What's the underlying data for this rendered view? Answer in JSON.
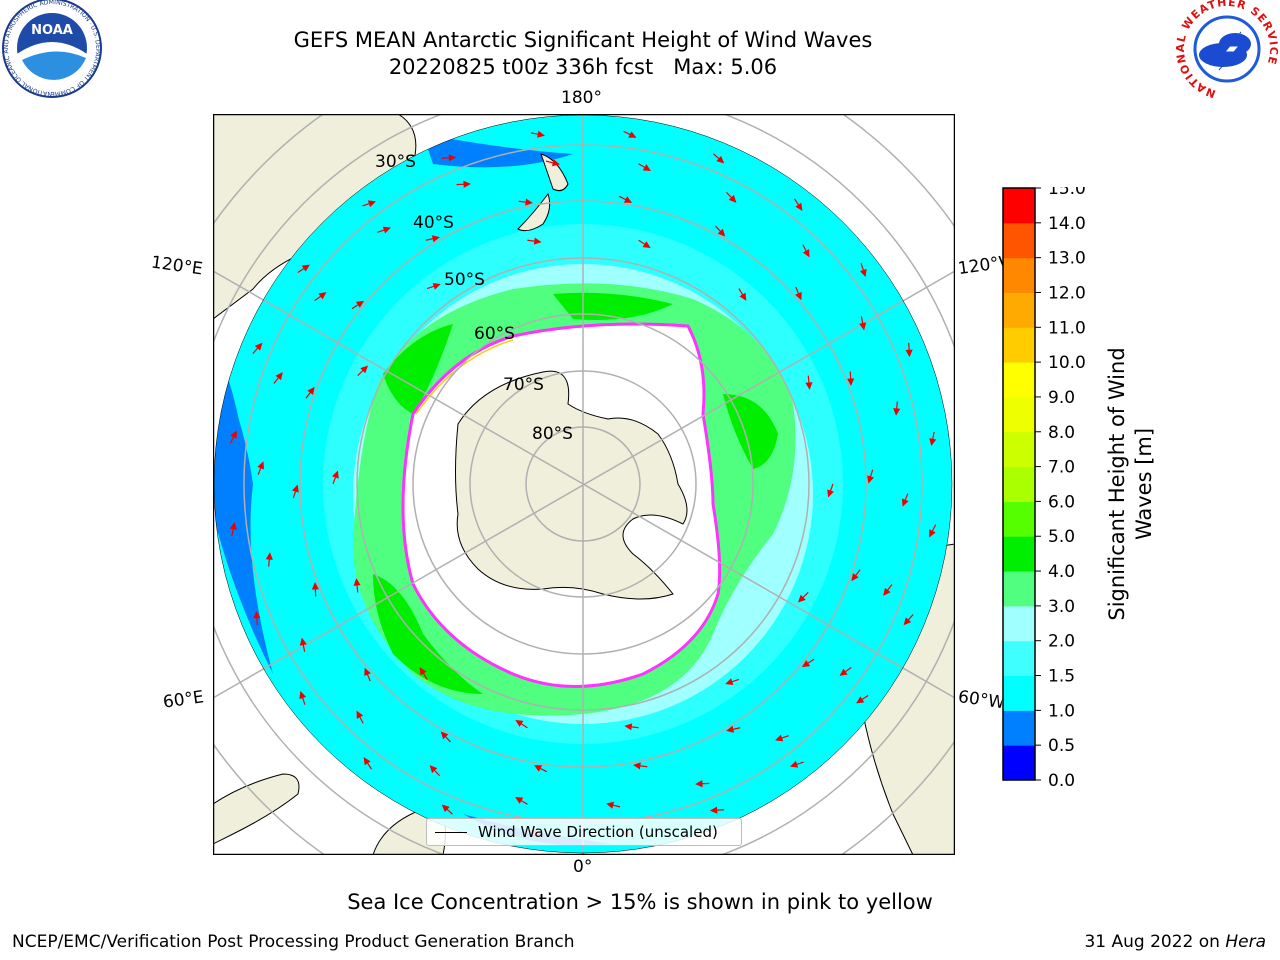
{
  "header": {
    "title_line1": "GEFS MEAN Antarctic Significant Height of Wind Waves",
    "title_line2": "20220825 t00z 336h fcst   Max: 5.06"
  },
  "map": {
    "longitude_labels": {
      "top": "180°",
      "bottom": "0°",
      "upper_left": "120°E",
      "upper_right": "120°W",
      "lower_left": "60°E",
      "lower_right": "60°W"
    },
    "latitude_labels": [
      "30°S",
      "40°S",
      "50°S",
      "60°S",
      "70°S",
      "80°S"
    ],
    "legend_entry": "Wind Wave Direction (unscaled)",
    "colors": {
      "land": "#efefdb",
      "sea_ice_region": "#ffffff",
      "ice_edge": "#ff33ff",
      "arrows": "#ee0000",
      "gridlines": "#b0b0b0"
    }
  },
  "colorbar": {
    "label_line1": "Significant Height of Wind",
    "label_line2": "Waves [m]",
    "ticks": [
      "0.0",
      "0.5",
      "1.0",
      "1.5",
      "2.0",
      "3.0",
      "4.0",
      "5.0",
      "6.0",
      "7.0",
      "8.0",
      "9.0",
      "10.0",
      "11.0",
      "12.0",
      "13.0",
      "14.0",
      "15.0"
    ],
    "colors": [
      "#0000ff",
      "#0080ff",
      "#00ffff",
      "#40ffff",
      "#a0ffff",
      "#50ff80",
      "#00ee00",
      "#55ff00",
      "#aaff00",
      "#ccff00",
      "#eeff00",
      "#ffff00",
      "#ffcc00",
      "#ffaa00",
      "#ff8800",
      "#ff5500",
      "#ff0000"
    ]
  },
  "footer": {
    "note": "Sea Ice Concentration > 15% is shown in pink to yellow",
    "credit": "NCEP/EMC/Verification Post Processing Product Generation Branch",
    "date": "31 Aug 2022 on ",
    "machine": "Hera"
  },
  "logos": {
    "noaa_text": "NOAA",
    "noaa_ring": "NATIONAL OCEANIC AND ATMOSPHERIC ADMINISTRATION · U.S. DEPARTMENT OF COMMERCE",
    "nws_ring": "NATIONAL WEATHER SERVICE"
  }
}
